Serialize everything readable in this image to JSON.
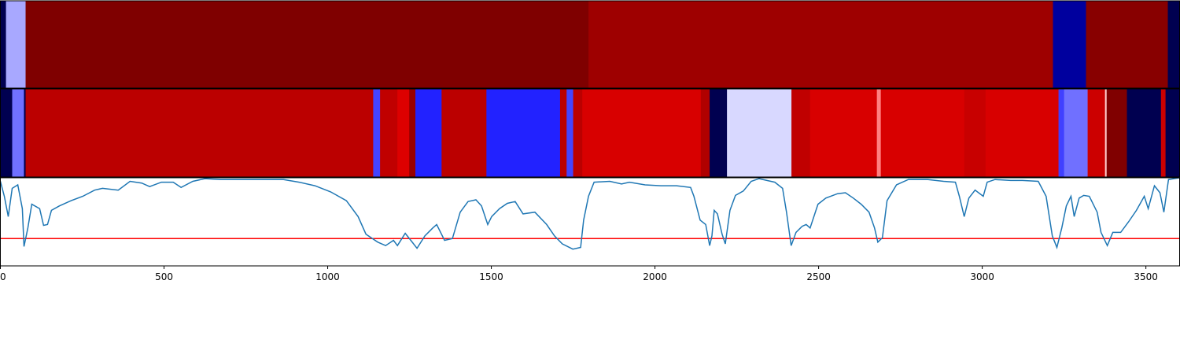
{
  "chart_data": [
    {
      "type": "segments",
      "xlim": [
        0,
        3603
      ],
      "segments": [
        {
          "start": 0,
          "end": 17,
          "color": "#000050"
        },
        {
          "start": 17,
          "end": 77,
          "color": "#a8a8ff"
        },
        {
          "start": 77,
          "end": 1797,
          "color": "#7f0000"
        },
        {
          "start": 1797,
          "end": 3216,
          "color": "#9e0000"
        },
        {
          "start": 3216,
          "end": 3317,
          "color": "#00009e"
        },
        {
          "start": 3317,
          "end": 3567,
          "color": "#880000"
        },
        {
          "start": 3567,
          "end": 3603,
          "color": "#000050"
        }
      ]
    },
    {
      "type": "segments",
      "xlim": [
        0,
        3603
      ],
      "segments": [
        {
          "start": 0,
          "end": 36,
          "color": "#000050"
        },
        {
          "start": 36,
          "end": 72,
          "color": "#7070ff"
        },
        {
          "start": 72,
          "end": 77,
          "color": "#000050"
        },
        {
          "start": 77,
          "end": 1139,
          "color": "#bb0000"
        },
        {
          "start": 1139,
          "end": 1160,
          "color": "#4444ff"
        },
        {
          "start": 1160,
          "end": 1213,
          "color": "#c00000"
        },
        {
          "start": 1213,
          "end": 1249,
          "color": "#dd0000"
        },
        {
          "start": 1249,
          "end": 1268,
          "color": "#990000"
        },
        {
          "start": 1268,
          "end": 1348,
          "color": "#2222ff"
        },
        {
          "start": 1348,
          "end": 1485,
          "color": "#bb0000"
        },
        {
          "start": 1485,
          "end": 1710,
          "color": "#2222ff"
        },
        {
          "start": 1710,
          "end": 1730,
          "color": "#bb0000"
        },
        {
          "start": 1730,
          "end": 1750,
          "color": "#4444ff"
        },
        {
          "start": 1750,
          "end": 1778,
          "color": "#bb0000"
        },
        {
          "start": 1778,
          "end": 2140,
          "color": "#d80000"
        },
        {
          "start": 2140,
          "end": 2167,
          "color": "#b00000"
        },
        {
          "start": 2167,
          "end": 2220,
          "color": "#000050"
        },
        {
          "start": 2220,
          "end": 2417,
          "color": "#d8d8ff"
        },
        {
          "start": 2417,
          "end": 2474,
          "color": "#c00000"
        },
        {
          "start": 2474,
          "end": 2678,
          "color": "#d80000"
        },
        {
          "start": 2678,
          "end": 2690,
          "color": "#ff8080"
        },
        {
          "start": 2690,
          "end": 2945,
          "color": "#d80000"
        },
        {
          "start": 2945,
          "end": 3010,
          "color": "#c80000"
        },
        {
          "start": 3010,
          "end": 3233,
          "color": "#d80000"
        },
        {
          "start": 3233,
          "end": 3250,
          "color": "#4040ff"
        },
        {
          "start": 3250,
          "end": 3322,
          "color": "#7070ff"
        },
        {
          "start": 3322,
          "end": 3375,
          "color": "#cc0000"
        },
        {
          "start": 3375,
          "end": 3380,
          "color": "#ffcccc"
        },
        {
          "start": 3380,
          "end": 3442,
          "color": "#800000"
        },
        {
          "start": 3442,
          "end": 3546,
          "color": "#000050"
        },
        {
          "start": 3546,
          "end": 3560,
          "color": "#cc0000"
        },
        {
          "start": 3560,
          "end": 3603,
          "color": "#000050"
        }
      ]
    },
    {
      "type": "line",
      "xlim": [
        0,
        3603
      ],
      "ylim": [
        0,
        1
      ],
      "xticks": [
        0,
        500,
        1000,
        1500,
        2000,
        2500,
        3000,
        3500
      ],
      "hline": {
        "value": 0.31,
        "color": "#ff0000"
      },
      "x": [
        0,
        12,
        24,
        36,
        53,
        67,
        72,
        84,
        96,
        120,
        132,
        144,
        156,
        180,
        216,
        252,
        288,
        312,
        360,
        396,
        432,
        456,
        492,
        528,
        552,
        588,
        625,
        673,
        769,
        865,
        913,
        961,
        1009,
        1057,
        1093,
        1117,
        1153,
        1177,
        1201,
        1213,
        1237,
        1254,
        1273,
        1297,
        1321,
        1333,
        1357,
        1381,
        1405,
        1429,
        1453,
        1470,
        1489,
        1501,
        1525,
        1549,
        1573,
        1597,
        1633,
        1669,
        1693,
        1717,
        1749,
        1773,
        1782,
        1797,
        1814,
        1862,
        1898,
        1922,
        1970,
        2018,
        2066,
        2109,
        2119,
        2138,
        2155,
        2167,
        2174,
        2181,
        2191,
        2205,
        2215,
        2229,
        2246,
        2270,
        2294,
        2318,
        2366,
        2390,
        2402,
        2416,
        2431,
        2450,
        2462,
        2474,
        2498,
        2522,
        2558,
        2582,
        2606,
        2630,
        2654,
        2671,
        2681,
        2695,
        2709,
        2738,
        2774,
        2834,
        2882,
        2918,
        2930,
        2945,
        2959,
        2978,
        3003,
        3015,
        3039,
        3087,
        3123,
        3171,
        3195,
        3214,
        3228,
        3243,
        3257,
        3271,
        3281,
        3296,
        3310,
        3327,
        3351,
        3363,
        3382,
        3399,
        3423,
        3447,
        3471,
        3495,
        3507,
        3526,
        3543,
        3555,
        3569,
        3603
      ],
      "series": [
        {
          "color": "#1f77b4",
          "values": [
            0.96,
            0.79,
            0.56,
            0.88,
            0.92,
            0.65,
            0.22,
            0.43,
            0.7,
            0.65,
            0.46,
            0.47,
            0.63,
            0.68,
            0.74,
            0.79,
            0.86,
            0.88,
            0.86,
            0.96,
            0.94,
            0.9,
            0.95,
            0.95,
            0.89,
            0.96,
            0.99,
            0.98,
            0.98,
            0.98,
            0.95,
            0.91,
            0.84,
            0.74,
            0.56,
            0.36,
            0.27,
            0.23,
            0.29,
            0.23,
            0.37,
            0.29,
            0.2,
            0.34,
            0.43,
            0.47,
            0.29,
            0.31,
            0.61,
            0.73,
            0.75,
            0.68,
            0.47,
            0.56,
            0.65,
            0.71,
            0.73,
            0.59,
            0.61,
            0.47,
            0.34,
            0.25,
            0.19,
            0.21,
            0.52,
            0.79,
            0.95,
            0.96,
            0.93,
            0.95,
            0.92,
            0.91,
            0.91,
            0.89,
            0.79,
            0.52,
            0.47,
            0.23,
            0.34,
            0.63,
            0.59,
            0.36,
            0.25,
            0.63,
            0.8,
            0.85,
            0.96,
            0.99,
            0.95,
            0.88,
            0.61,
            0.23,
            0.38,
            0.45,
            0.47,
            0.43,
            0.7,
            0.77,
            0.82,
            0.83,
            0.77,
            0.7,
            0.61,
            0.43,
            0.27,
            0.32,
            0.74,
            0.92,
            0.98,
            0.98,
            0.96,
            0.95,
            0.79,
            0.56,
            0.77,
            0.86,
            0.79,
            0.95,
            0.98,
            0.97,
            0.97,
            0.96,
            0.79,
            0.34,
            0.21,
            0.43,
            0.68,
            0.79,
            0.56,
            0.77,
            0.8,
            0.79,
            0.61,
            0.38,
            0.23,
            0.38,
            0.38,
            0.5,
            0.63,
            0.79,
            0.65,
            0.91,
            0.83,
            0.61,
            0.98,
            1.0
          ]
        }
      ]
    }
  ]
}
